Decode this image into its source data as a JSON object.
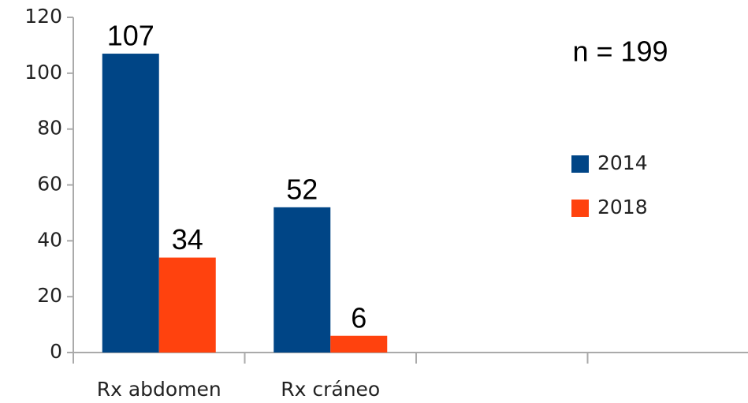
{
  "chart_data": {
    "type": "bar",
    "annotation": "n = 199",
    "categories": [
      "Rx abdomen",
      "Rx cráneo",
      null,
      null
    ],
    "series": [
      {
        "name": "2014",
        "color": "#004586",
        "values": [
          107,
          52,
          null,
          null
        ]
      },
      {
        "name": "2018",
        "color": "#ff420e",
        "values": [
          34,
          6,
          null,
          null
        ]
      }
    ],
    "ylim": [
      0,
      120
    ],
    "yticks": [
      0,
      20,
      40,
      60,
      80,
      100,
      120
    ],
    "grid": false,
    "legend": "right"
  }
}
